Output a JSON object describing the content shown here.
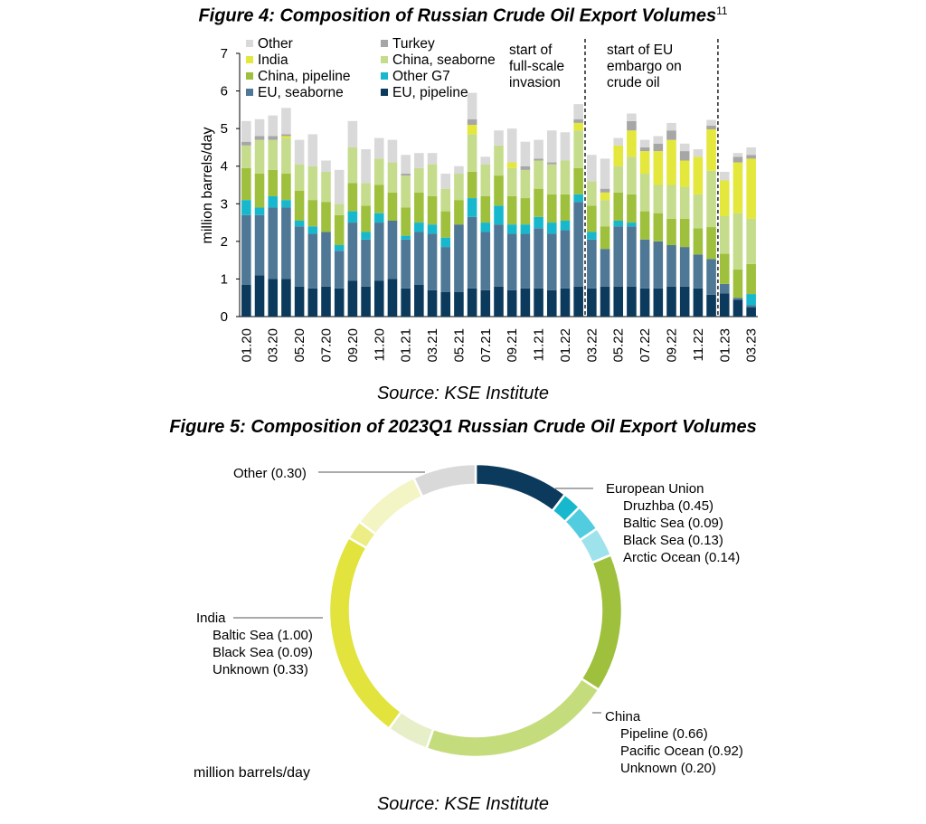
{
  "figure4": {
    "title": "Figure 4: Composition of Russian Crude Oil Export Volumes",
    "footnote": "11",
    "source": "Source: KSE Institute"
  },
  "figure5": {
    "title": "Figure 5: Composition of 2023Q1 Russian Crude Oil Export Volumes",
    "source": "Source: KSE Institute",
    "unit_label": "million barrels/day"
  },
  "colors": {
    "eu_pipeline": "#0b3a5c",
    "eu_seaborne": "#4f7896",
    "other_g7": "#17b8cd",
    "china_pipeline": "#9ec03c",
    "china_seaborne": "#c5dc8c",
    "india": "#e4e73c",
    "turkey": "#a6a6a6",
    "other": "#d9d9d9"
  },
  "chart_data": [
    {
      "type": "bar",
      "stacked": true,
      "ylabel": "million barrels/day",
      "ylim": [
        0,
        7
      ],
      "yticks": [
        0,
        1,
        2,
        3,
        4,
        5,
        6,
        7
      ],
      "categories": [
        "01.20",
        "02.20",
        "03.20",
        "04.20",
        "05.20",
        "06.20",
        "07.20",
        "08.20",
        "09.20",
        "10.20",
        "11.20",
        "12.20",
        "01.21",
        "02.21",
        "03.21",
        "04.21",
        "05.21",
        "06.21",
        "07.21",
        "08.21",
        "09.21",
        "10.21",
        "11.21",
        "12.21",
        "01.22",
        "02.22",
        "03.22",
        "04.22",
        "05.22",
        "06.22",
        "07.22",
        "08.22",
        "09.22",
        "10.22",
        "11.22",
        "12.22",
        "01.23",
        "02.23",
        "03.23"
      ],
      "xtick_labels": [
        "01.20",
        "03.20",
        "05.20",
        "07.20",
        "09.20",
        "11.20",
        "01.21",
        "03.21",
        "05.21",
        "07.21",
        "09.21",
        "11.21",
        "01.22",
        "03.22",
        "05.22",
        "07.22",
        "09.22",
        "11.22",
        "01.23",
        "03.23"
      ],
      "series": [
        {
          "key": "eu_pipeline",
          "name": "EU, pipeline",
          "values": [
            0.85,
            1.1,
            1.0,
            1.0,
            0.8,
            0.75,
            0.8,
            0.75,
            0.95,
            0.8,
            0.95,
            1.0,
            0.75,
            0.85,
            0.7,
            0.65,
            0.65,
            0.75,
            0.7,
            0.8,
            0.7,
            0.75,
            0.75,
            0.7,
            0.75,
            0.8,
            0.75,
            0.8,
            0.8,
            0.8,
            0.75,
            0.75,
            0.8,
            0.8,
            0.75,
            0.58,
            0.62,
            0.45,
            0.25
          ]
        },
        {
          "key": "eu_seaborne",
          "name": "EU, seaborne",
          "values": [
            1.85,
            1.6,
            1.9,
            1.9,
            1.6,
            1.45,
            1.45,
            1.0,
            1.55,
            1.25,
            1.55,
            1.55,
            1.3,
            1.4,
            1.5,
            1.2,
            1.8,
            1.9,
            1.55,
            1.65,
            1.5,
            1.45,
            1.6,
            1.5,
            1.55,
            2.25,
            1.3,
            1.0,
            1.6,
            1.6,
            1.3,
            1.25,
            1.1,
            1.05,
            0.9,
            0.95,
            0.25,
            0.05,
            0.05
          ]
        },
        {
          "key": "other_g7",
          "name": "Other G7",
          "values": [
            0.4,
            0.2,
            0.3,
            0.2,
            0.15,
            0.2,
            0.0,
            0.15,
            0.3,
            0.2,
            0.25,
            0.0,
            0.1,
            0.25,
            0.25,
            0.25,
            0.0,
            0.5,
            0.25,
            0.5,
            0.25,
            0.25,
            0.3,
            0.3,
            0.25,
            0.2,
            0.2,
            0.0,
            0.15,
            0.1,
            0.0,
            0.0,
            0.0,
            0.0,
            0.0,
            0.0,
            0.0,
            0.0,
            0.3
          ]
        },
        {
          "key": "china_pipeline",
          "name": "China, pipeline",
          "values": [
            0.85,
            0.9,
            0.7,
            0.7,
            0.8,
            0.7,
            0.8,
            0.8,
            0.75,
            0.7,
            0.75,
            0.75,
            0.75,
            0.8,
            0.75,
            0.7,
            0.65,
            0.7,
            0.7,
            0.8,
            0.75,
            0.7,
            0.75,
            0.75,
            0.7,
            0.7,
            0.7,
            0.6,
            0.75,
            0.75,
            0.75,
            0.75,
            0.7,
            0.75,
            0.7,
            0.85,
            0.8,
            0.75,
            0.8
          ]
        },
        {
          "key": "china_seaborne",
          "name": "China, seaborne",
          "values": [
            0.6,
            0.9,
            0.8,
            0.95,
            0.7,
            0.9,
            0.8,
            0.3,
            0.95,
            0.6,
            0.7,
            0.8,
            0.85,
            0.65,
            0.85,
            0.6,
            0.7,
            1.0,
            0.85,
            0.8,
            0.75,
            0.75,
            0.75,
            0.8,
            0.9,
            1.0,
            0.65,
            0.7,
            0.7,
            1.0,
            1.0,
            0.75,
            0.9,
            0.85,
            0.9,
            1.5,
            1.0,
            1.5,
            1.2
          ]
        },
        {
          "key": "india",
          "name": "India",
          "values": [
            0.0,
            0.0,
            0.0,
            0.05,
            0.0,
            0.0,
            0.0,
            0.0,
            0.0,
            0.0,
            0.0,
            0.0,
            0.0,
            0.0,
            0.0,
            0.0,
            0.0,
            0.25,
            0.0,
            0.0,
            0.15,
            0.0,
            0.0,
            0.0,
            0.0,
            0.2,
            0.0,
            0.2,
            0.55,
            0.7,
            0.6,
            0.9,
            1.2,
            0.7,
            1.0,
            1.1,
            0.95,
            1.35,
            1.6
          ]
        },
        {
          "key": "turkey",
          "name": "Turkey",
          "values": [
            0.1,
            0.1,
            0.1,
            0.05,
            0.0,
            0.0,
            0.0,
            0.0,
            0.0,
            0.0,
            0.0,
            0.0,
            0.05,
            0.0,
            0.0,
            0.0,
            0.0,
            0.15,
            0.0,
            0.0,
            0.0,
            0.1,
            0.05,
            0.05,
            0.0,
            0.1,
            0.0,
            0.1,
            0.0,
            0.25,
            0.1,
            0.2,
            0.25,
            0.25,
            0.0,
            0.1,
            0.0,
            0.15,
            0.1
          ]
        },
        {
          "key": "other",
          "name": "Other",
          "values": [
            0.55,
            0.45,
            0.55,
            0.7,
            0.65,
            0.85,
            0.3,
            0.9,
            0.7,
            0.9,
            0.55,
            0.6,
            0.5,
            0.4,
            0.3,
            0.4,
            0.2,
            0.7,
            0.2,
            0.4,
            0.9,
            0.65,
            0.5,
            0.85,
            0.75,
            0.4,
            0.7,
            0.8,
            0.2,
            0.2,
            0.2,
            0.2,
            0.2,
            0.2,
            0.2,
            0.15,
            0.23,
            0.1,
            0.2
          ]
        }
      ],
      "annotations": [
        {
          "at": "02.22",
          "text": [
            "start of",
            "full-scale",
            "invasion"
          ]
        },
        {
          "at": "12.22",
          "text": [
            "start of EU",
            "embargo on",
            "crude oil"
          ]
        }
      ]
    },
    {
      "type": "pie",
      "style": "donut",
      "slices": [
        {
          "group": "European Union",
          "label": "Druzhba",
          "value": 0.45,
          "color": "#0b3a5c"
        },
        {
          "group": "European Union",
          "label": "Baltic Sea",
          "value": 0.09,
          "color": "#17b8cd"
        },
        {
          "group": "European Union",
          "label": "Black Sea",
          "value": 0.13,
          "color": "#52cde0"
        },
        {
          "group": "European Union",
          "label": "Arctic Ocean",
          "value": 0.14,
          "color": "#9ee2ec"
        },
        {
          "group": "China",
          "label": "Pipeline",
          "value": 0.66,
          "color": "#9ec03c"
        },
        {
          "group": "China",
          "label": "Pacific Ocean",
          "value": 0.92,
          "color": "#c5dc7c"
        },
        {
          "group": "China",
          "label": "Unknown",
          "value": 0.2,
          "color": "#e6efc8"
        },
        {
          "group": "India",
          "label": "Baltic Sea",
          "value": 1.0,
          "color": "#e2e33c"
        },
        {
          "group": "India",
          "label": "Black Sea",
          "value": 0.09,
          "color": "#eced84"
        },
        {
          "group": "India",
          "label": "Unknown",
          "value": 0.33,
          "color": "#f3f5c4"
        },
        {
          "group": "Other",
          "label": "Other",
          "value": 0.3,
          "color": "#d9d9d9"
        }
      ],
      "labels": {
        "eu": {
          "title": "European Union",
          "lines": [
            "Druzhba (0.45)",
            "Baltic Sea (0.09)",
            "Black Sea (0.13)",
            "Arctic Ocean (0.14)"
          ]
        },
        "china": {
          "title": "China",
          "lines": [
            "Pipeline (0.66)",
            "Pacific Ocean (0.92)",
            "Unknown (0.20)"
          ]
        },
        "india": {
          "title": "India",
          "lines": [
            "Baltic Sea (1.00)",
            "Black Sea (0.09)",
            "Unknown (0.33)"
          ]
        },
        "other": {
          "title": "Other (0.30)"
        }
      }
    }
  ]
}
